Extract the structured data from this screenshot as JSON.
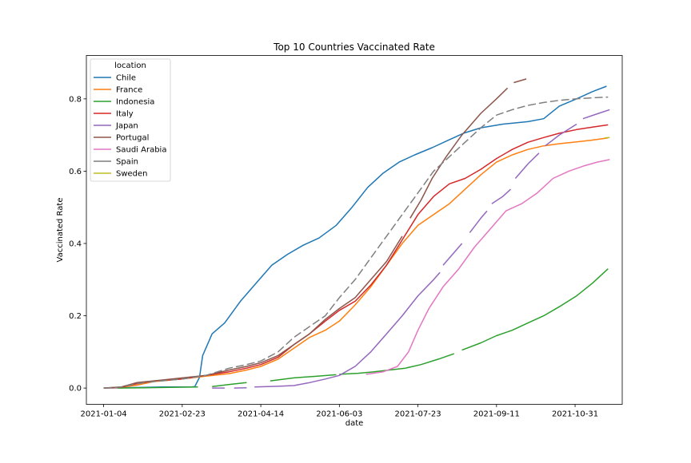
{
  "chart_data": {
    "type": "line",
    "title": "Top 10 Countries Vaccinated Rate",
    "xlabel": "date",
    "ylabel": "Vaccinated Rate",
    "x_range": [
      "2020-12-24",
      "2021-11-30"
    ],
    "ylim": [
      -0.045,
      0.92
    ],
    "x_ticks": [
      "2021-01-04",
      "2021-02-23",
      "2021-04-14",
      "2021-06-03",
      "2021-07-23",
      "2021-09-11",
      "2021-10-31"
    ],
    "y_ticks": [
      0.0,
      0.2,
      0.4,
      0.6,
      0.8
    ],
    "grid": false,
    "legend": {
      "title": "location",
      "placement": "top-left"
    },
    "series": [
      {
        "name": "Chile",
        "color": "#1f77b4",
        "style": "solid",
        "points": [
          [
            "2021-01-04",
            0.0
          ],
          [
            "2021-01-30",
            0.002
          ],
          [
            "2021-02-10",
            0.003
          ],
          [
            "2021-03-01",
            0.003
          ],
          [
            "2021-03-03",
            0.004
          ],
          [
            "2021-03-06",
            0.03
          ],
          [
            "2021-03-08",
            0.09
          ],
          [
            "2021-03-14",
            0.15
          ],
          [
            "2021-03-22",
            0.18
          ],
          [
            "2021-04-01",
            0.24
          ],
          [
            "2021-04-11",
            0.29
          ],
          [
            "2021-04-21",
            0.34
          ],
          [
            "2021-05-01",
            0.37
          ],
          [
            "2021-05-11",
            0.395
          ],
          [
            "2021-05-21",
            0.415
          ],
          [
            "2021-06-01",
            0.45
          ],
          [
            "2021-06-11",
            0.5
          ],
          [
            "2021-06-21",
            0.555
          ],
          [
            "2021-07-01",
            0.595
          ],
          [
            "2021-07-11",
            0.625
          ],
          [
            "2021-07-21",
            0.645
          ],
          [
            "2021-08-01",
            0.665
          ],
          [
            "2021-08-11",
            0.685
          ],
          [
            "2021-08-21",
            0.705
          ],
          [
            "2021-09-01",
            0.72
          ],
          [
            "2021-09-15",
            0.73
          ],
          [
            "2021-10-01",
            0.737
          ],
          [
            "2021-10-11",
            0.745
          ],
          [
            "2021-10-21",
            0.78
          ],
          [
            "2021-11-01",
            0.8
          ],
          [
            "2021-11-11",
            0.82
          ],
          [
            "2021-11-20",
            0.835
          ]
        ]
      },
      {
        "name": "France",
        "color": "#ff7f0e",
        "style": "solid",
        "points": [
          [
            "2021-01-04",
            0.0
          ],
          [
            "2021-01-15",
            0.002
          ],
          [
            "2021-01-25",
            0.008
          ],
          [
            "2021-02-05",
            0.018
          ],
          [
            "2021-02-23",
            0.025
          ],
          [
            "2021-03-10",
            0.033
          ],
          [
            "2021-03-25",
            0.04
          ],
          [
            "2021-04-05",
            0.05
          ],
          [
            "2021-04-14",
            0.06
          ],
          [
            "2021-04-25",
            0.08
          ],
          [
            "2021-05-05",
            0.11
          ],
          [
            "2021-05-15",
            0.14
          ],
          [
            "2021-05-25",
            0.16
          ],
          [
            "2021-06-03",
            0.185
          ],
          [
            "2021-06-13",
            0.23
          ],
          [
            "2021-06-23",
            0.28
          ],
          [
            "2021-07-03",
            0.34
          ],
          [
            "2021-07-13",
            0.4
          ],
          [
            "2021-07-23",
            0.45
          ],
          [
            "2021-08-02",
            0.48
          ],
          [
            "2021-08-12",
            0.51
          ],
          [
            "2021-08-22",
            0.55
          ],
          [
            "2021-09-01",
            0.59
          ],
          [
            "2021-09-11",
            0.625
          ],
          [
            "2021-09-21",
            0.645
          ],
          [
            "2021-10-01",
            0.66
          ],
          [
            "2021-10-11",
            0.67
          ],
          [
            "2021-10-21",
            0.676
          ],
          [
            "2021-11-01",
            0.681
          ],
          [
            "2021-11-11",
            0.686
          ],
          [
            "2021-11-21",
            0.692
          ]
        ]
      },
      {
        "name": "Indonesia",
        "color": "#2ca02c",
        "style": "mixed",
        "segments": [
          [
            [
              "2021-01-13",
              0.0
            ],
            [
              "2021-01-30",
              0.001
            ],
            [
              "2021-02-15",
              0.002
            ],
            [
              "2021-03-05",
              0.003
            ]
          ],
          [
            [
              "2021-03-14",
              0.004
            ],
            [
              "2021-03-25",
              0.01
            ],
            [
              "2021-04-05",
              0.015
            ]
          ],
          [
            [
              "2021-04-20",
              0.02
            ],
            [
              "2021-05-05",
              0.028
            ],
            [
              "2021-05-20",
              0.033
            ],
            [
              "2021-06-01",
              0.037
            ]
          ],
          [
            [
              "2021-06-03",
              0.038
            ],
            [
              "2021-06-15",
              0.041
            ],
            [
              "2021-06-25",
              0.045
            ],
            [
              "2021-07-05",
              0.05
            ],
            [
              "2021-07-15",
              0.055
            ],
            [
              "2021-07-25",
              0.065
            ],
            [
              "2021-08-05",
              0.08
            ],
            [
              "2021-08-15",
              0.095
            ]
          ],
          [
            [
              "2021-08-20",
              0.105
            ],
            [
              "2021-09-01",
              0.125
            ],
            [
              "2021-09-11",
              0.145
            ],
            [
              "2021-09-21",
              0.16
            ],
            [
              "2021-10-01",
              0.18
            ],
            [
              "2021-10-11",
              0.2
            ],
            [
              "2021-10-21",
              0.225
            ],
            [
              "2021-11-01",
              0.255
            ],
            [
              "2021-11-11",
              0.29
            ],
            [
              "2021-11-21",
              0.33
            ]
          ]
        ]
      },
      {
        "name": "Italy",
        "color": "#d62728",
        "style": "solid",
        "points": [
          [
            "2021-01-04",
            0.0
          ],
          [
            "2021-01-15",
            0.002
          ],
          [
            "2021-01-25",
            0.012
          ],
          [
            "2021-02-05",
            0.02
          ],
          [
            "2021-02-23",
            0.025
          ],
          [
            "2021-03-10",
            0.035
          ],
          [
            "2021-03-25",
            0.045
          ],
          [
            "2021-04-05",
            0.055
          ],
          [
            "2021-04-14",
            0.065
          ],
          [
            "2021-04-25",
            0.085
          ],
          [
            "2021-05-05",
            0.12
          ],
          [
            "2021-05-15",
            0.15
          ],
          [
            "2021-05-25",
            0.185
          ],
          [
            "2021-06-03",
            0.215
          ],
          [
            "2021-06-13",
            0.24
          ],
          [
            "2021-06-23",
            0.285
          ],
          [
            "2021-07-03",
            0.34
          ],
          [
            "2021-07-13",
            0.41
          ],
          [
            "2021-07-23",
            0.48
          ],
          [
            "2021-08-02",
            0.53
          ],
          [
            "2021-08-12",
            0.565
          ],
          [
            "2021-08-22",
            0.58
          ],
          [
            "2021-09-01",
            0.605
          ],
          [
            "2021-09-11",
            0.635
          ],
          [
            "2021-09-21",
            0.66
          ],
          [
            "2021-10-01",
            0.68
          ],
          [
            "2021-10-11",
            0.693
          ],
          [
            "2021-10-21",
            0.705
          ],
          [
            "2021-11-01",
            0.715
          ],
          [
            "2021-11-11",
            0.722
          ],
          [
            "2021-11-21",
            0.728
          ]
        ]
      },
      {
        "name": "Japan",
        "color": "#9467bd",
        "style": "mixed",
        "segments": [
          [
            [
              "2021-03-14",
              0.0
            ],
            [
              "2021-03-22",
              0.0
            ]
          ],
          [
            [
              "2021-03-28",
              0.0
            ],
            [
              "2021-04-05",
              0.001
            ]
          ],
          [
            [
              "2021-04-10",
              0.003
            ],
            [
              "2021-04-25",
              0.005
            ],
            [
              "2021-05-05",
              0.007
            ],
            [
              "2021-05-15",
              0.015
            ],
            [
              "2021-05-25",
              0.025
            ],
            [
              "2021-06-03",
              0.035
            ],
            [
              "2021-06-13",
              0.06
            ],
            [
              "2021-06-23",
              0.1
            ],
            [
              "2021-07-03",
              0.15
            ],
            [
              "2021-07-13",
              0.2
            ],
            [
              "2021-07-23",
              0.255
            ],
            [
              "2021-08-02",
              0.3
            ],
            [
              "2021-08-06",
              0.32
            ]
          ],
          [
            [
              "2021-08-08",
              0.34
            ],
            [
              "2021-08-14",
              0.37
            ],
            [
              "2021-08-20",
              0.4
            ]
          ],
          [
            [
              "2021-08-25",
              0.43
            ],
            [
              "2021-09-01",
              0.47
            ],
            [
              "2021-09-05",
              0.49
            ]
          ],
          [
            [
              "2021-09-08",
              0.51
            ],
            [
              "2021-09-15",
              0.53
            ],
            [
              "2021-09-20",
              0.55
            ]
          ],
          [
            [
              "2021-09-23",
              0.58
            ],
            [
              "2021-10-01",
              0.62
            ],
            [
              "2021-10-08",
              0.65
            ]
          ],
          [
            [
              "2021-10-12",
              0.67
            ],
            [
              "2021-10-21",
              0.7
            ],
            [
              "2021-11-01",
              0.73
            ]
          ],
          [
            [
              "2021-11-05",
              0.745
            ],
            [
              "2021-11-15",
              0.76
            ],
            [
              "2021-11-22",
              0.77
            ]
          ]
        ]
      },
      {
        "name": "Portugal",
        "color": "#8c564b",
        "style": "mixed",
        "segments": [
          [
            [
              "2021-01-04",
              0.0
            ],
            [
              "2021-01-15",
              0.003
            ],
            [
              "2021-01-25",
              0.015
            ],
            [
              "2021-02-05",
              0.02
            ],
            [
              "2021-02-23",
              0.028
            ],
            [
              "2021-03-10",
              0.035
            ],
            [
              "2021-03-25",
              0.05
            ],
            [
              "2021-04-05",
              0.06
            ],
            [
              "2021-04-14",
              0.07
            ],
            [
              "2021-04-25",
              0.09
            ],
            [
              "2021-05-05",
              0.12
            ],
            [
              "2021-05-15",
              0.15
            ],
            [
              "2021-05-25",
              0.19
            ],
            [
              "2021-06-03",
              0.22
            ],
            [
              "2021-06-13",
              0.25
            ],
            [
              "2021-06-23",
              0.3
            ],
            [
              "2021-07-03",
              0.35
            ],
            [
              "2021-07-13",
              0.42
            ]
          ],
          [
            [
              "2021-07-18",
              0.47
            ],
            [
              "2021-07-25",
              0.52
            ],
            [
              "2021-08-01",
              0.58
            ],
            [
              "2021-08-10",
              0.64
            ],
            [
              "2021-08-20",
              0.7
            ],
            [
              "2021-09-01",
              0.76
            ],
            [
              "2021-09-11",
              0.8
            ],
            [
              "2021-09-18",
              0.83
            ]
          ],
          [
            [
              "2021-09-22",
              0.845
            ],
            [
              "2021-09-30",
              0.855
            ]
          ]
        ]
      },
      {
        "name": "Saudi Arabia",
        "color": "#e377c2",
        "style": "solid",
        "points": [
          [
            "2021-06-20",
            0.038
          ],
          [
            "2021-07-01",
            0.045
          ],
          [
            "2021-07-10",
            0.06
          ],
          [
            "2021-07-17",
            0.1
          ],
          [
            "2021-07-23",
            0.16
          ],
          [
            "2021-07-30",
            0.22
          ],
          [
            "2021-08-08",
            0.28
          ],
          [
            "2021-08-18",
            0.33
          ],
          [
            "2021-08-28",
            0.39
          ],
          [
            "2021-09-07",
            0.44
          ],
          [
            "2021-09-17",
            0.49
          ],
          [
            "2021-09-27",
            0.51
          ],
          [
            "2021-10-07",
            0.54
          ],
          [
            "2021-10-17",
            0.58
          ],
          [
            "2021-10-27",
            0.6
          ],
          [
            "2021-11-06",
            0.615
          ],
          [
            "2021-11-14",
            0.625
          ],
          [
            "2021-11-22",
            0.632
          ]
        ]
      },
      {
        "name": "Spain",
        "color": "#7f7f7f",
        "style": "dashed",
        "points": [
          [
            "2021-01-04",
            0.0
          ],
          [
            "2021-01-15",
            0.003
          ],
          [
            "2021-01-25",
            0.012
          ],
          [
            "2021-02-05",
            0.018
          ],
          [
            "2021-02-23",
            0.025
          ],
          [
            "2021-03-10",
            0.035
          ],
          [
            "2021-03-25",
            0.055
          ],
          [
            "2021-04-05",
            0.065
          ],
          [
            "2021-04-14",
            0.075
          ],
          [
            "2021-04-25",
            0.1
          ],
          [
            "2021-05-05",
            0.14
          ],
          [
            "2021-05-15",
            0.17
          ],
          [
            "2021-05-25",
            0.2
          ],
          [
            "2021-06-03",
            0.25
          ],
          [
            "2021-06-13",
            0.3
          ],
          [
            "2021-06-23",
            0.36
          ],
          [
            "2021-07-03",
            0.42
          ],
          [
            "2021-07-13",
            0.48
          ],
          [
            "2021-07-23",
            0.54
          ],
          [
            "2021-08-02",
            0.6
          ],
          [
            "2021-08-12",
            0.64
          ],
          [
            "2021-08-22",
            0.68
          ],
          [
            "2021-09-01",
            0.72
          ],
          [
            "2021-09-11",
            0.755
          ],
          [
            "2021-09-21",
            0.77
          ],
          [
            "2021-10-01",
            0.782
          ],
          [
            "2021-10-11",
            0.79
          ],
          [
            "2021-10-21",
            0.796
          ],
          [
            "2021-11-01",
            0.8
          ],
          [
            "2021-11-11",
            0.803
          ],
          [
            "2021-11-21",
            0.805
          ]
        ]
      },
      {
        "name": "Sweden",
        "color": "#bcbd22",
        "style": "dashed",
        "points": [
          [
            "2021-11-19",
            0.692
          ],
          [
            "2021-11-22",
            0.693
          ]
        ]
      }
    ]
  }
}
